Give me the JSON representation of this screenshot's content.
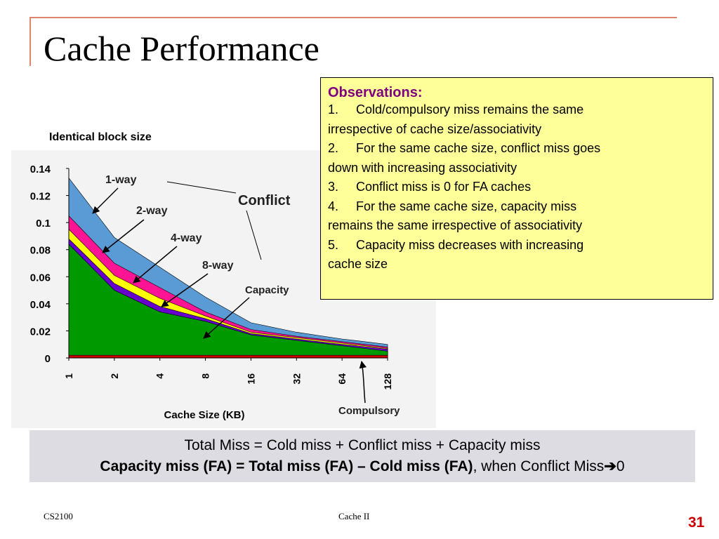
{
  "slide": {
    "title": "Cache Performance",
    "chart_caption": "Identical block size",
    "footer_left": "CS2100",
    "footer_center": "Cache II",
    "page_number": "31"
  },
  "observations": {
    "heading": "Observations:",
    "items": [
      {
        "num": "1.",
        "text": "Cold/compulsory miss remains the same",
        "cont": "irrespective of cache size/associativity"
      },
      {
        "num": "2.",
        "text": "For the same cache size, conflict miss goes",
        "cont": "down with increasing associativity"
      },
      {
        "num": "3.",
        "text": "Conflict miss is 0 for FA caches",
        "cont": ""
      },
      {
        "num": "4.",
        "text": "For the same cache size, capacity miss",
        "cont": "remains the same irrespective of associativity"
      },
      {
        "num": "5.",
        "text": "Capacity miss decreases with increasing",
        "cont": "cache size"
      }
    ],
    "colors": {
      "background": "#ffff99",
      "heading": "#800080"
    }
  },
  "formula": {
    "line1": "Total Miss = Cold miss + Conflict miss + Capacity miss",
    "line2_bold": "Capacity miss (FA) = Total miss (FA) – Cold miss (FA)",
    "line2_rest": ", when Conflict Miss",
    "arrow": "➔",
    "line2_end": "0"
  },
  "chart_data": {
    "type": "area",
    "xlabel": "Cache Size (KB)",
    "ylabel": "",
    "categories": [
      "1",
      "2",
      "4",
      "8",
      "16",
      "32",
      "64",
      "128"
    ],
    "ylim": [
      0,
      0.14
    ],
    "yticks": [
      "0.14",
      "0.12",
      "0.1",
      "0.08",
      "0.06",
      "0.04",
      "0.02",
      "0"
    ],
    "stacked_boundaries": [
      {
        "name": "1-way",
        "values": [
          0.133,
          0.089,
          0.067,
          0.045,
          0.026,
          0.019,
          0.014,
          0.01
        ],
        "color": "#5b9bd5"
      },
      {
        "name": "2-way",
        "values": [
          0.105,
          0.07,
          0.052,
          0.034,
          0.021,
          0.016,
          0.012,
          0.008
        ],
        "color": "#ff1493"
      },
      {
        "name": "4-way",
        "values": [
          0.095,
          0.061,
          0.044,
          0.031,
          0.019,
          0.015,
          0.011,
          0.007
        ],
        "color": "#ffff00"
      },
      {
        "name": "8-way",
        "values": [
          0.088,
          0.055,
          0.038,
          0.029,
          0.018,
          0.014,
          0.01,
          0.0065
        ],
        "color": "#6600cc"
      },
      {
        "name": "Capacity",
        "values": [
          0.084,
          0.05,
          0.034,
          0.027,
          0.017,
          0.013,
          0.009,
          0.005
        ],
        "color": "#009900"
      },
      {
        "name": "Compulsory",
        "values": [
          0.002,
          0.002,
          0.002,
          0.002,
          0.002,
          0.002,
          0.002,
          0.002
        ],
        "color": "#cc0000"
      }
    ],
    "annotations": [
      "1-way",
      "2-way",
      "4-way",
      "8-way",
      "Conflict",
      "Capacity",
      "Compulsory"
    ]
  }
}
